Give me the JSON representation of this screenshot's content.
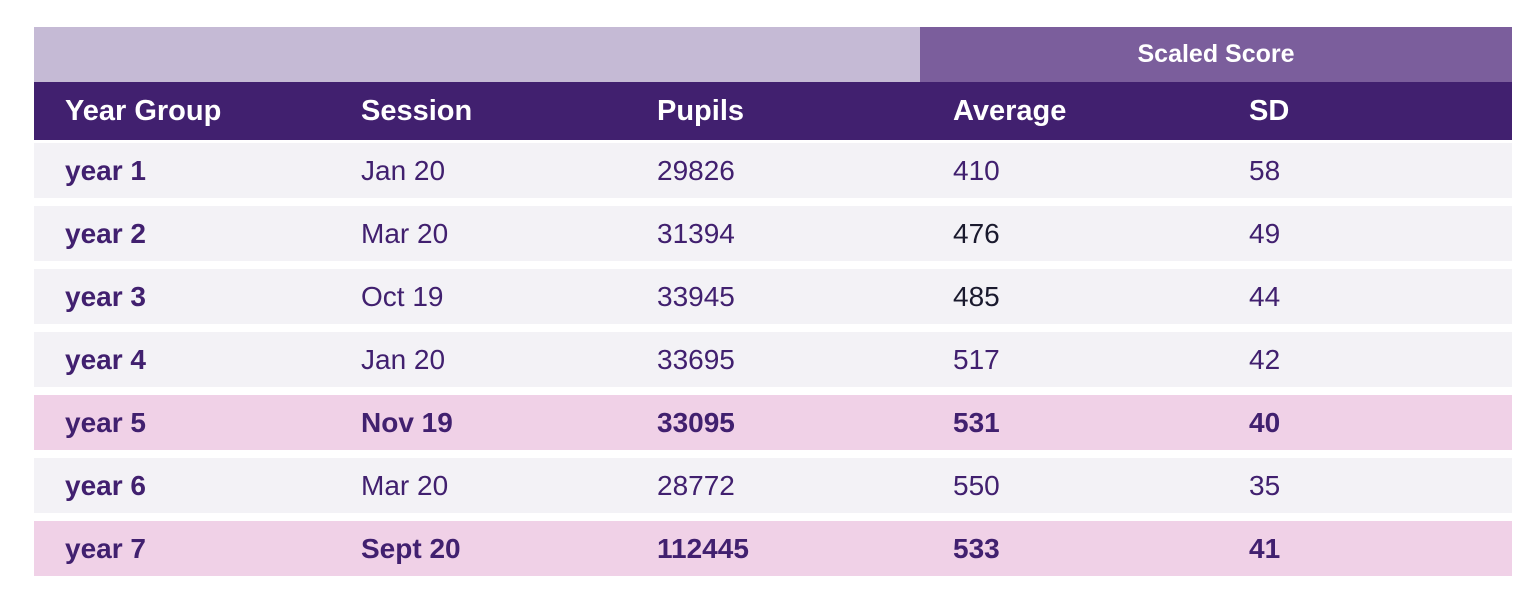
{
  "table": {
    "group_header": "Scaled Score",
    "columns": [
      "Year Group",
      "Session",
      "Pupils",
      "Average",
      "SD"
    ],
    "rows": [
      {
        "year_group": "year 1",
        "session": "Jan 20",
        "pupils": "29826",
        "average": "410",
        "sd": "58",
        "highlight": false
      },
      {
        "year_group": "year 2",
        "session": "Mar 20",
        "pupils": "31394",
        "average": "476",
        "sd": "49",
        "highlight": false
      },
      {
        "year_group": "year 3",
        "session": "Oct 19",
        "pupils": "33945",
        "average": "485",
        "sd": "44",
        "highlight": false
      },
      {
        "year_group": "year 4",
        "session": "Jan 20",
        "pupils": "33695",
        "average": "517",
        "sd": "42",
        "highlight": false
      },
      {
        "year_group": "year 5",
        "session": "Nov 19",
        "pupils": "33095",
        "average": "531",
        "sd": "40",
        "highlight": true
      },
      {
        "year_group": "year 6",
        "session": "Mar 20",
        "pupils": "28772",
        "average": "550",
        "sd": "35",
        "highlight": false
      },
      {
        "year_group": "year 7",
        "session": "Sept 20",
        "pupils": "112445",
        "average": "533",
        "sd": "41",
        "highlight": true
      }
    ],
    "colors": {
      "header_bg": "#41206f",
      "group_header_bg": "#7b5e9c",
      "blank_header_bg": "#c5bad5",
      "row_bg": "#f3f2f6",
      "highlight_row_bg": "#f0d1e7",
      "text": "#41206f"
    }
  }
}
